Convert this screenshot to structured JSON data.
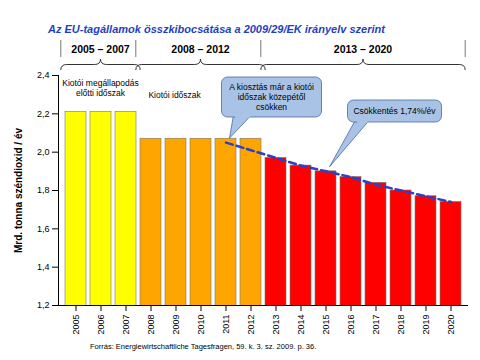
{
  "chart_data": {
    "type": "bar",
    "title": "Az EU-tagállamok összkibocsátása a 2009/29/EK irányelv szerint",
    "y_label": "Mrd. tonna széndioxid / év",
    "source": "Forrás: Energiewirtschaftliche Tagesfragen, 59. k. 3. sz. 2009. p. 36.",
    "categories": [
      "2005",
      "2006",
      "2007",
      "2008",
      "2009",
      "2010",
      "2011",
      "2012",
      "2013",
      "2014",
      "2015",
      "2016",
      "2017",
      "2018",
      "2019",
      "2020"
    ],
    "values": [
      2.21,
      2.21,
      2.21,
      2.07,
      2.07,
      2.07,
      2.07,
      2.07,
      1.97,
      1.93,
      1.9,
      1.87,
      1.84,
      1.8,
      1.77,
      1.74
    ],
    "colors": [
      "#ffff00",
      "#ffff00",
      "#ffff00",
      "#ffa500",
      "#ffa500",
      "#ffa500",
      "#ffa500",
      "#ffa500",
      "#ff0000",
      "#ff0000",
      "#ff0000",
      "#ff0000",
      "#ff0000",
      "#ff0000",
      "#ff0000",
      "#ff0000"
    ],
    "ylim": [
      1.2,
      2.4
    ],
    "yticks": [
      {
        "value": 1.2,
        "label": "1,2"
      },
      {
        "value": 1.4,
        "label": "1,4"
      },
      {
        "value": 1.6,
        "label": "1,6"
      },
      {
        "value": 1.8,
        "label": "1,8"
      },
      {
        "value": 2.0,
        "label": "2,0"
      },
      {
        "value": 2.2,
        "label": "2,2"
      },
      {
        "value": 2.4,
        "label": "2,4"
      }
    ],
    "grid": false,
    "trend": {
      "type": "line",
      "color": "#2a40c8",
      "line_style": "dashed",
      "values": [
        null,
        null,
        null,
        null,
        null,
        null,
        2.05,
        2.01,
        1.97,
        1.93,
        1.9,
        1.87,
        1.83,
        1.8,
        1.77,
        1.74
      ]
    },
    "periods": [
      {
        "label": "2005 – 2007",
        "text": "Kiotói megállapodás előtti időszak",
        "first": "2005",
        "last": "2007"
      },
      {
        "label": "2008 – 2012",
        "text": "Kiotói időszak",
        "first": "2008",
        "last": "2012"
      },
      {
        "label": "2013 – 2020",
        "first": "2013",
        "last": "2020"
      }
    ],
    "annotations": [
      {
        "text": "A kiosztás már a kiotói időszak közepétől csökken",
        "at": "2011"
      },
      {
        "text": "Csökkentés 1,74%/év",
        "at": "2015"
      }
    ]
  }
}
